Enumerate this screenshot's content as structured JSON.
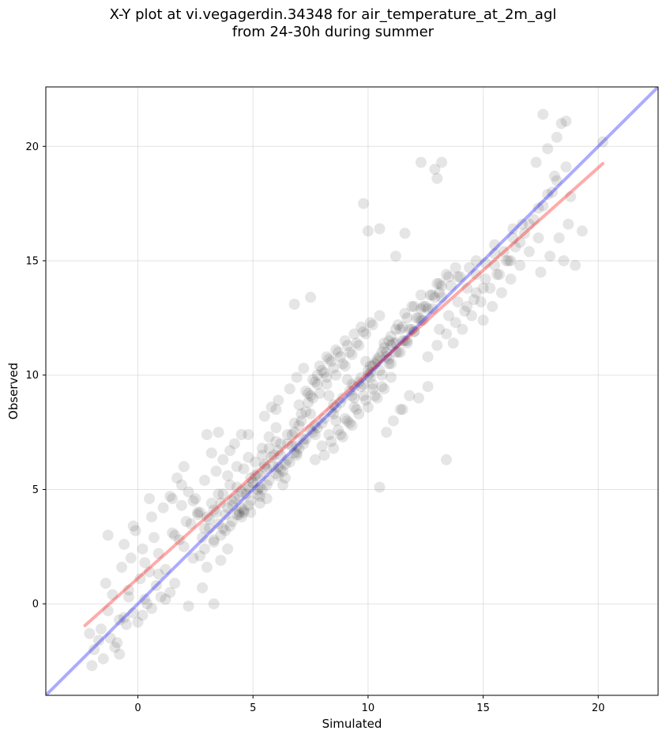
{
  "chart_data": {
    "type": "scatter",
    "title_line1": "X-Y plot at vi.vegagerdin.34348 for air_temperature_at_2m_agl",
    "title_line2": "from 24-30h during summer",
    "xlabel": "Simulated",
    "ylabel": "Observed",
    "xlim": [
      -4.0,
      22.6
    ],
    "ylim": [
      -4.0,
      22.6
    ],
    "xticks": [
      0,
      5,
      10,
      15,
      20
    ],
    "yticks": [
      0,
      5,
      10,
      15,
      20
    ],
    "grid": true,
    "colors": {
      "points": "#000000",
      "identity_line": "#0000ff",
      "fit_line": "#ff0000"
    },
    "identity_line": {
      "x": [
        -4.0,
        22.6
      ],
      "y": [
        -4.0,
        22.6
      ]
    },
    "fit_line": {
      "x": [
        -2.3,
        20.2
      ],
      "y": [
        -0.95,
        19.25
      ]
    },
    "points": {
      "x": [
        -2.1,
        -1.9,
        -1.7,
        -1.5,
        -2.0,
        -1.2,
        -1.0,
        -0.8,
        -0.6,
        -1.6,
        -1.3,
        -0.9,
        -0.5,
        -0.2,
        0.0,
        0.3,
        -0.4,
        0.1,
        0.4,
        0.6,
        -1.4,
        -1.1,
        -0.7,
        -0.3,
        0.2,
        0.5,
        0.8,
        1.0,
        0.7,
        -0.1,
        -1.3,
        -0.6,
        -0.2,
        0.3,
        0.9,
        1.2,
        1.5,
        1.8,
        2.1,
        2.4,
        0.6,
        1.1,
        1.6,
        2.0,
        2.3,
        2.7,
        3.0,
        3.2,
        1.4,
        1.9,
        2.6,
        3.3,
        3.6,
        3.9,
        2.2,
        2.9,
        3.4,
        1.7,
        2.5,
        3.1,
        3.0,
        3.3,
        3.6,
        3.9,
        4.2,
        4.5,
        4.8,
        3.5,
        3.8,
        4.1,
        4.4,
        4.7,
        5.0,
        5.3,
        5.6,
        3.7,
        4.0,
        4.3,
        4.6,
        4.9,
        5.2,
        5.5,
        5.8,
        6.1,
        4.1,
        4.4,
        4.7,
        5.0,
        5.3,
        3.9,
        4.6,
        5.1,
        5.4,
        5.7,
        6.0,
        4.3,
        4.8,
        5.2,
        2.8,
        3.1,
        2.6,
        3.4,
        3.7,
        4.0,
        4.2,
        4.5,
        2.9,
        3.2,
        3.5,
        4.9,
        5.6,
        6.3,
        5.9,
        6.2,
        6.5,
        6.8,
        7.1,
        5.4,
        5.7,
        6.0,
        6.3,
        6.6,
        6.9,
        7.2,
        7.5,
        5.5,
        5.8,
        6.1,
        6.4,
        6.7,
        7.0,
        7.3,
        7.6,
        7.9,
        8.2,
        6.2,
        6.5,
        6.8,
        7.1,
        7.4,
        7.7,
        8.0,
        8.3,
        8.6,
        6.6,
        6.9,
        7.2,
        7.5,
        7.8,
        8.1,
        8.4,
        8.7,
        9.0,
        7.0,
        7.3,
        7.6,
        7.9,
        8.2,
        8.5,
        8.8,
        9.1,
        9.4,
        7.4,
        7.7,
        8.0,
        8.3,
        8.6,
        8.9,
        9.2,
        9.5,
        9.8,
        7.8,
        8.1,
        8.4,
        8.7,
        9.0,
        9.3,
        9.6,
        9.9,
        10.2,
        8.2,
        8.5,
        8.8,
        9.1,
        9.4,
        9.7,
        10.0,
        10.3,
        10.6,
        8.6,
        8.9,
        9.2,
        9.5,
        9.8,
        10.1,
        10.4,
        10.7,
        11.0,
        9.0,
        9.3,
        9.6,
        9.9,
        10.2,
        10.5,
        10.8,
        11.1,
        11.4,
        9.4,
        9.7,
        10.0,
        10.3,
        10.6,
        10.9,
        11.2,
        11.5,
        11.8,
        9.8,
        10.1,
        10.4,
        10.7,
        11.0,
        11.3,
        11.6,
        11.9,
        12.2,
        10.2,
        10.5,
        10.8,
        11.1,
        11.4,
        11.7,
        12.0,
        12.3,
        12.6,
        10.6,
        10.9,
        11.2,
        11.5,
        11.8,
        12.1,
        12.4,
        12.7,
        13.0,
        11.0,
        11.3,
        11.6,
        11.9,
        12.2,
        12.5,
        12.8,
        13.1,
        13.4,
        11.4,
        11.7,
        12.0,
        12.3,
        12.6,
        12.9,
        13.2,
        13.5,
        13.8,
        12.0,
        12.4,
        12.8,
        13.2,
        13.6,
        14.0,
        14.4,
        12.6,
        13.0,
        13.4,
        13.8,
        14.2,
        14.6,
        15.0,
        13.1,
        13.5,
        13.9,
        14.3,
        14.7,
        15.1,
        15.5,
        13.7,
        14.1,
        14.5,
        14.9,
        15.3,
        15.7,
        16.1,
        14.3,
        14.7,
        15.1,
        15.5,
        15.9,
        16.3,
        16.7,
        15.0,
        15.4,
        15.8,
        16.2,
        16.6,
        17.0,
        17.4,
        15.6,
        16.0,
        16.4,
        16.8,
        17.2,
        17.6,
        18.0,
        16.2,
        16.6,
        17.0,
        17.4,
        17.8,
        18.2,
        18.6,
        17.5,
        17.9,
        18.3,
        18.7,
        17.8,
        18.2,
        18.6,
        19.3,
        20.2,
        17.6,
        18.4,
        18.8,
        18.1,
        17.3,
        18.5,
        19.0,
        12.3,
        12.9,
        13.0,
        13.2,
        11.6,
        9.8,
        10.5,
        11.2,
        10.0,
        13.4,
        10.5,
        6.0,
        5.5,
        4.8,
        6.8,
        7.5,
        3.0,
        2.0,
        1.5,
        2.4,
        0.5,
        1.9,
        2.7,
        3.5,
        4.3,
        5.1,
        5.9,
        6.7,
        7.5,
        8.3,
        9.1,
        9.9,
        10.7,
        11.5,
        12.3,
        13.1,
        13.9,
        14.7,
        15.5,
        16.3,
        4.5,
        5.3,
        6.1,
        6.9,
        7.7,
        8.5,
        9.3,
        10.1,
        10.9,
        11.7,
        3.6,
        4.4,
        5.2,
        6.0,
        6.8,
        7.6,
        8.4,
        9.2,
        10.0,
        10.8,
        2.9,
        3.7,
        4.5,
        5.3,
        6.1,
        6.9,
        7.7,
        8.5,
        9.3,
        10.1,
        4.0,
        4.8,
        5.6,
        6.4,
        7.2,
        8.0,
        8.8,
        9.6,
        10.4,
        11.2,
        3.3,
        4.1,
        4.9,
        5.7,
        6.5,
        7.3,
        8.1,
        8.9,
        9.7,
        10.5,
        1.2,
        1.6,
        2.2,
        2.8,
        3.3,
        0.9,
        1.4,
        0.2,
        -0.4,
        -0.8,
        3.8,
        4.6,
        5.4,
        6.2,
        7.0,
        7.8,
        8.6,
        9.4,
        10.2,
        11.0
      ],
      "y": [
        -1.3,
        -2.0,
        -1.6,
        -2.4,
        -2.7,
        -1.5,
        -1.9,
        -2.2,
        -0.6,
        -1.1,
        -0.3,
        -1.7,
        -0.9,
        -0.4,
        -0.8,
        0.2,
        0.6,
        1.1,
        0.0,
        -0.2,
        0.9,
        0.4,
        1.6,
        2.0,
        2.4,
        1.4,
        0.8,
        0.3,
        2.9,
        3.2,
        3.0,
        2.6,
        3.4,
        1.8,
        2.2,
        1.5,
        3.1,
        2.8,
        3.6,
        2.0,
        3.8,
        4.2,
        3.0,
        2.5,
        3.5,
        2.1,
        1.6,
        4.4,
        4.7,
        5.2,
        3.9,
        2.8,
        1.9,
        2.4,
        4.9,
        3.3,
        4.0,
        5.5,
        4.6,
        3.7,
        3.8,
        4.1,
        4.4,
        4.2,
        4.6,
        4.9,
        5.1,
        3.5,
        3.9,
        4.3,
        4.7,
        5.0,
        5.3,
        5.6,
        5.9,
        4.8,
        5.2,
        3.9,
        4.0,
        5.5,
        5.7,
        6.1,
        6.4,
        6.7,
        4.5,
        4.0,
        4.8,
        5.3,
        4.4,
        5.6,
        5.9,
        6.2,
        6.5,
        6.8,
        7.1,
        6.0,
        6.4,
        5.0,
        2.9,
        3.3,
        4.0,
        5.8,
        6.3,
        6.7,
        7.0,
        7.4,
        5.4,
        6.6,
        7.5,
        4.0,
        4.6,
        5.2,
        6.0,
        6.5,
        7.0,
        7.5,
        8.0,
        6.8,
        7.3,
        7.7,
        5.8,
        6.2,
        6.6,
        7.2,
        7.6,
        8.2,
        8.6,
        8.9,
        5.5,
        6.9,
        7.8,
        8.4,
        9.0,
        9.2,
        9.6,
        7.0,
        7.4,
        7.9,
        8.3,
        8.8,
        6.3,
        6.9,
        7.4,
        8.0,
        9.4,
        9.9,
        10.3,
        9.1,
        10.0,
        6.5,
        7.1,
        7.6,
        8.1,
        8.7,
        9.3,
        9.8,
        10.4,
        10.8,
        6.8,
        7.4,
        8.0,
        8.6,
        9.2,
        9.7,
        10.2,
        10.7,
        11.1,
        7.3,
        7.9,
        8.5,
        9.1,
        9.6,
        10.1,
        10.6,
        11.0,
        11.5,
        7.8,
        8.3,
        8.9,
        9.4,
        9.9,
        10.3,
        10.8,
        11.3,
        11.8,
        12.1,
        8.6,
        9.1,
        9.5,
        10.0,
        10.5,
        11.0,
        11.4,
        11.9,
        12.3,
        9.0,
        9.4,
        9.9,
        10.4,
        10.9,
        11.3,
        11.8,
        12.2,
        12.6,
        7.5,
        8.0,
        8.5,
        9.0,
        9.5,
        10.0,
        10.5,
        11.0,
        11.5,
        12.0,
        8.5,
        9.1,
        9.6,
        10.1,
        10.7,
        11.2,
        11.7,
        12.2,
        12.7,
        13.0,
        9.0,
        9.6,
        10.2,
        10.8,
        11.4,
        12.0,
        12.5,
        13.0,
        13.5,
        9.5,
        10.0,
        10.5,
        11.0,
        11.5,
        12.0,
        12.5,
        13.0,
        13.5,
        14.0,
        10.5,
        11.0,
        11.5,
        12.0,
        12.5,
        13.0,
        13.5,
        14.0,
        14.4,
        11.0,
        11.4,
        11.9,
        12.4,
        12.9,
        13.4,
        13.9,
        14.3,
        14.7,
        11.9,
        12.4,
        12.9,
        13.4,
        13.9,
        14.3,
        14.7,
        10.8,
        11.3,
        11.8,
        12.3,
        12.8,
        13.3,
        13.8,
        12.0,
        12.6,
        13.2,
        13.8,
        14.4,
        14.9,
        15.3,
        11.4,
        12.0,
        12.6,
        13.2,
        13.8,
        14.4,
        15.0,
        13.0,
        13.6,
        14.2,
        14.8,
        15.4,
        16.0,
        16.6,
        12.4,
        13.0,
        13.6,
        14.2,
        14.8,
        15.4,
        16.0,
        14.4,
        15.0,
        15.6,
        16.2,
        16.8,
        17.4,
        18.0,
        15.0,
        15.8,
        16.6,
        17.3,
        17.9,
        18.5,
        19.1,
        14.5,
        15.2,
        16.0,
        16.6,
        19.9,
        20.4,
        21.1,
        16.3,
        20.2,
        21.4,
        21.0,
        17.8,
        18.7,
        19.3,
        15.0,
        14.8,
        19.3,
        19.0,
        18.6,
        19.3,
        16.2,
        17.5,
        16.4,
        15.2,
        16.3,
        6.3,
        5.1,
        8.5,
        6.0,
        7.4,
        13.1,
        13.4,
        7.4,
        6.0,
        4.6,
        4.5,
        4.6,
        4.3,
        4.0,
        4.8,
        5.1,
        5.6,
        6.5,
        7.4,
        8.3,
        9.1,
        9.8,
        10.6,
        11.4,
        12.1,
        12.9,
        13.6,
        14.3,
        15.0,
        15.7,
        16.4,
        3.8,
        4.7,
        5.6,
        6.5,
        7.4,
        8.3,
        9.1,
        9.9,
        10.7,
        11.5,
        3.0,
        3.9,
        4.8,
        5.7,
        6.6,
        7.5,
        8.4,
        9.3,
        10.2,
        11.0,
        2.4,
        3.3,
        4.2,
        5.1,
        6.0,
        6.9,
        7.8,
        8.7,
        9.6,
        10.4,
        3.4,
        4.3,
        5.2,
        6.1,
        7.0,
        7.9,
        8.8,
        9.7,
        10.6,
        11.4,
        2.7,
        3.6,
        4.5,
        5.4,
        6.3,
        7.2,
        8.1,
        9.0,
        9.9,
        10.8,
        0.2,
        0.9,
        -0.1,
        0.7,
        0.0,
        1.3,
        0.5,
        -0.5,
        0.3,
        -0.7,
        3.2,
        4.1,
        5.0,
        5.9,
        6.8,
        7.7,
        8.6,
        9.5,
        10.4,
        11.3
      ]
    }
  }
}
